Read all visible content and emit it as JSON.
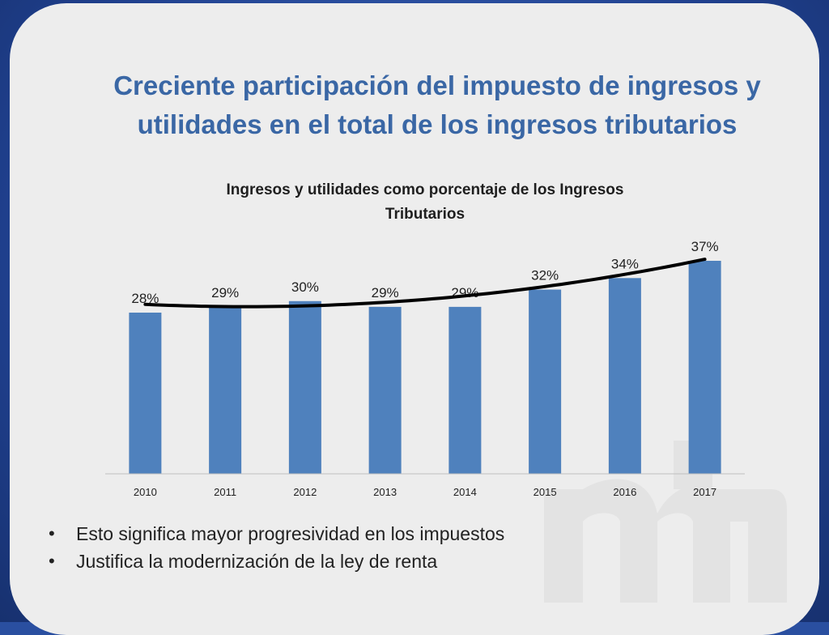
{
  "slide": {
    "title_line1": "Creciente participación del impuesto de ingresos y",
    "title_line2": "utilidades en el total de los ingresos tributarios"
  },
  "chart_data": {
    "type": "bar",
    "title_line1": "Ingresos y utilidades como porcentaje de los Ingresos",
    "title_line2": "Tributarios",
    "categories": [
      "2010",
      "2011",
      "2012",
      "2013",
      "2014",
      "2015",
      "2016",
      "2017"
    ],
    "values": [
      28,
      29,
      30,
      29,
      29,
      32,
      34,
      37
    ],
    "labels": [
      "28%",
      "29%",
      "30%",
      "29%",
      "29%",
      "32%",
      "34%",
      "37%"
    ],
    "ylim": [
      0,
      37
    ],
    "bar_color": "#4f81bd",
    "trendline": true,
    "trendline_color": "#000000"
  },
  "bullets": [
    "Esto significa mayor progresividad en los impuestos",
    "Justifica la modernización de la ley de renta"
  ],
  "colors": {
    "frame": "#2a4fa0",
    "slide_bg": "#ededed",
    "title": "#3a67a5"
  }
}
